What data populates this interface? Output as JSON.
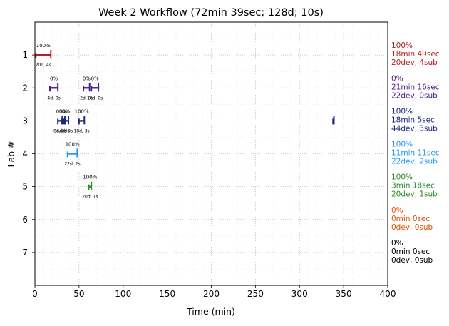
{
  "chart_data": {
    "type": "scatter",
    "title": "Week 2 Workflow (72min 39sec; 128d; 10s)",
    "xlabel": "Time (min)",
    "ylabel": "Lab #",
    "xlim": [
      0,
      400
    ],
    "ylim": [
      8,
      0
    ],
    "grid": true,
    "x_ticks": [
      0,
      50,
      100,
      150,
      200,
      250,
      300,
      350,
      400
    ],
    "y_ticks": [
      1,
      2,
      3,
      4,
      5,
      6,
      7
    ],
    "labs": [
      {
        "lab": 1,
        "color": "#b22222",
        "summary": [
          "100%",
          "18min 49sec",
          "20dev, 4sub"
        ]
      },
      {
        "lab": 2,
        "color": "#4b1a8a",
        "summary": [
          "0%",
          "21min 16sec",
          "22dev, 0sub"
        ]
      },
      {
        "lab": 3,
        "color": "#1f2a7a",
        "summary": [
          "100%",
          "18min 5sec",
          "44dev, 3sub"
        ]
      },
      {
        "lab": 4,
        "color": "#2196f3",
        "summary": [
          "100%",
          "11min 11sec",
          "22dev, 2sub"
        ]
      },
      {
        "lab": 5,
        "color": "#2e8b2e",
        "summary": [
          "100%",
          "3min 18sec",
          "20dev, 1sub"
        ]
      },
      {
        "lab": 6,
        "color": "#e65100",
        "summary": [
          "0%",
          "0min 0sec",
          "0dev, 0sub"
        ]
      },
      {
        "lab": 7,
        "color": "#000000",
        "summary": [
          "0%",
          "0min 0sec",
          "0dev, 0sub"
        ]
      }
    ],
    "segments": [
      {
        "lab": 1,
        "start": 1,
        "end": 18,
        "pct": "100%",
        "stats": "20d, 4s"
      },
      {
        "lab": 2,
        "start": 17,
        "end": 26,
        "pct": "0%",
        "stats": "4d, 0s"
      },
      {
        "lab": 2,
        "start": 55,
        "end": 62,
        "pct": "0%",
        "stats": "2d, 0s"
      },
      {
        "lab": 2,
        "start": 64,
        "end": 72,
        "pct": "0%",
        "stats": "16d, 0s"
      },
      {
        "lab": 3,
        "start": 26,
        "end": 31,
        "pct": "0%",
        "stats": "8d, 0s"
      },
      {
        "lab": 3,
        "start": 30,
        "end": 34,
        "pct": "0%",
        "stats": "6d, 0s"
      },
      {
        "lab": 3,
        "start": 33,
        "end": 38,
        "pct": "0%",
        "stats": "4d, 0s"
      },
      {
        "lab": 3,
        "start": 50,
        "end": 56,
        "pct": "100%",
        "stats": "18d, 3s"
      },
      {
        "lab": 3,
        "start": 338,
        "end": 339,
        "pct": "",
        "stats": ""
      },
      {
        "lab": 4,
        "start": 37,
        "end": 48,
        "pct": "100%",
        "stats": "22d, 2s"
      },
      {
        "lab": 5,
        "start": 61,
        "end": 64,
        "pct": "100%",
        "stats": "20d, 1s"
      }
    ]
  }
}
